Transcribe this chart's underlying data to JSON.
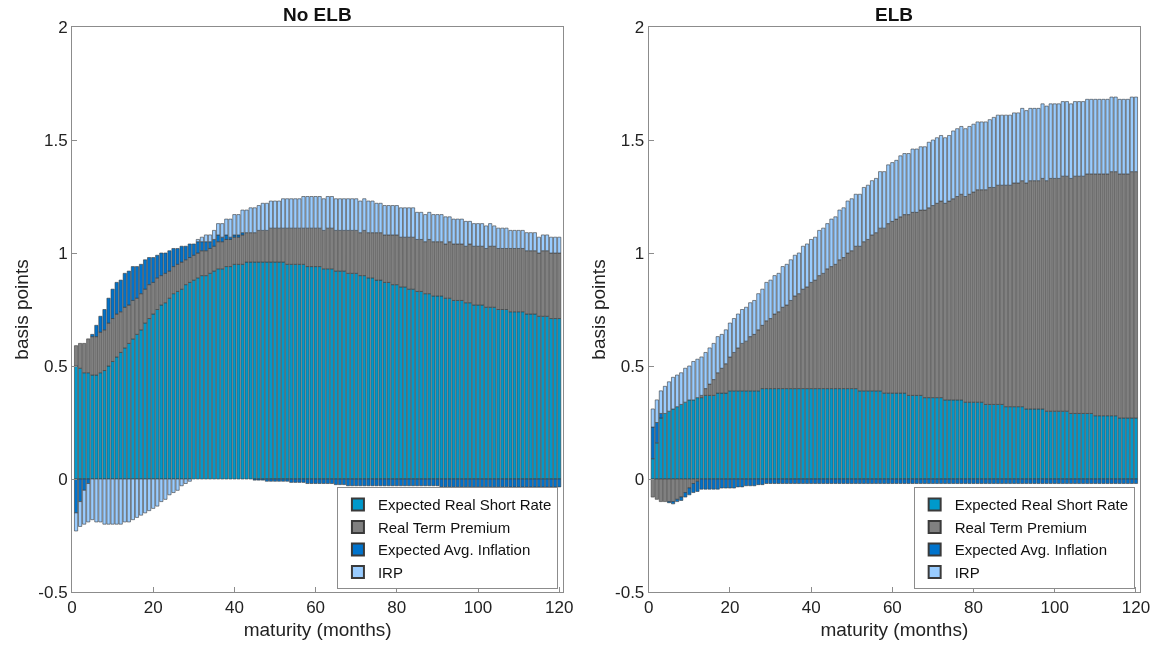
{
  "chart_data": [
    {
      "type": "bar",
      "stacked": true,
      "title": "No ELB",
      "xlabel": "maturity (months)",
      "ylabel": "basis points",
      "xlim": [
        0,
        121
      ],
      "ylim": [
        -0.5,
        2
      ],
      "xticks": [
        0,
        20,
        40,
        60,
        80,
        100,
        120
      ],
      "yticks": [
        -0.5,
        0,
        0.5,
        1,
        1.5,
        2
      ],
      "legend": "bottom right",
      "x": [
        1,
        2,
        3,
        4,
        5,
        6,
        7,
        8,
        9,
        10,
        11,
        12,
        13,
        14,
        15,
        16,
        17,
        18,
        19,
        20,
        21,
        22,
        23,
        24,
        25,
        26,
        27,
        28,
        29,
        30,
        31,
        32,
        33,
        34,
        35,
        36,
        37,
        38,
        39,
        40,
        41,
        42,
        43,
        44,
        45,
        46,
        47,
        48,
        49,
        50,
        51,
        52,
        53,
        54,
        55,
        56,
        57,
        58,
        59,
        60,
        61,
        62,
        63,
        64,
        65,
        66,
        67,
        68,
        69,
        70,
        71,
        72,
        73,
        74,
        75,
        76,
        77,
        78,
        79,
        80,
        81,
        82,
        83,
        84,
        85,
        86,
        87,
        88,
        89,
        90,
        91,
        92,
        93,
        94,
        95,
        96,
        97,
        98,
        99,
        100,
        101,
        102,
        103,
        104,
        105,
        106,
        107,
        108,
        109,
        110,
        111,
        112,
        113,
        114,
        115,
        116,
        117,
        118,
        119,
        120
      ],
      "series": [
        {
          "name": "Expected Real Short Rate",
          "color": "#0099cc",
          "values": [
            0.5,
            0.49,
            0.47,
            0.47,
            0.46,
            0.46,
            0.47,
            0.48,
            0.5,
            0.52,
            0.54,
            0.56,
            0.58,
            0.6,
            0.62,
            0.64,
            0.66,
            0.69,
            0.71,
            0.73,
            0.75,
            0.77,
            0.78,
            0.8,
            0.82,
            0.83,
            0.84,
            0.86,
            0.87,
            0.88,
            0.89,
            0.9,
            0.9,
            0.91,
            0.92,
            0.93,
            0.93,
            0.94,
            0.94,
            0.95,
            0.95,
            0.95,
            0.96,
            0.96,
            0.96,
            0.96,
            0.96,
            0.96,
            0.96,
            0.96,
            0.96,
            0.96,
            0.95,
            0.95,
            0.95,
            0.95,
            0.95,
            0.94,
            0.94,
            0.94,
            0.94,
            0.93,
            0.93,
            0.93,
            0.92,
            0.92,
            0.92,
            0.91,
            0.91,
            0.91,
            0.9,
            0.9,
            0.89,
            0.89,
            0.88,
            0.88,
            0.87,
            0.87,
            0.86,
            0.86,
            0.85,
            0.85,
            0.84,
            0.84,
            0.83,
            0.83,
            0.82,
            0.82,
            0.81,
            0.81,
            0.81,
            0.8,
            0.8,
            0.79,
            0.79,
            0.79,
            0.78,
            0.78,
            0.77,
            0.77,
            0.77,
            0.76,
            0.76,
            0.76,
            0.75,
            0.75,
            0.75,
            0.74,
            0.74,
            0.74,
            0.74,
            0.73,
            0.73,
            0.73,
            0.72,
            0.72,
            0.72,
            0.71,
            0.71,
            0.71
          ]
        },
        {
          "name": "Real Term Premium",
          "color": "#808080",
          "values": [
            0.09,
            0.11,
            0.13,
            0.15,
            0.17,
            0.17,
            0.18,
            0.18,
            0.19,
            0.19,
            0.19,
            0.18,
            0.18,
            0.17,
            0.17,
            0.16,
            0.16,
            0.15,
            0.15,
            0.14,
            0.14,
            0.13,
            0.13,
            0.12,
            0.12,
            0.12,
            0.12,
            0.11,
            0.11,
            0.11,
            0.11,
            0.11,
            0.11,
            0.11,
            0.11,
            0.12,
            0.12,
            0.12,
            0.12,
            0.12,
            0.12,
            0.13,
            0.13,
            0.13,
            0.13,
            0.14,
            0.14,
            0.14,
            0.15,
            0.15,
            0.15,
            0.15,
            0.16,
            0.16,
            0.16,
            0.16,
            0.16,
            0.17,
            0.17,
            0.17,
            0.17,
            0.17,
            0.18,
            0.18,
            0.18,
            0.18,
            0.18,
            0.19,
            0.19,
            0.19,
            0.19,
            0.2,
            0.2,
            0.2,
            0.21,
            0.21,
            0.21,
            0.21,
            0.22,
            0.22,
            0.22,
            0.22,
            0.23,
            0.23,
            0.23,
            0.23,
            0.23,
            0.24,
            0.24,
            0.24,
            0.24,
            0.24,
            0.25,
            0.25,
            0.25,
            0.25,
            0.25,
            0.26,
            0.26,
            0.26,
            0.26,
            0.26,
            0.27,
            0.27,
            0.27,
            0.27,
            0.27,
            0.28,
            0.28,
            0.28,
            0.28,
            0.28,
            0.28,
            0.28,
            0.28,
            0.29,
            0.29,
            0.29,
            0.29,
            0.29
          ]
        },
        {
          "name": "Expected Avg. Inflation",
          "color": "#0073cc",
          "values": [
            -0.15,
            -0.1,
            -0.05,
            -0.02,
            0.01,
            0.05,
            0.07,
            0.09,
            0.11,
            0.13,
            0.14,
            0.14,
            0.15,
            0.15,
            0.15,
            0.14,
            0.13,
            0.13,
            0.12,
            0.11,
            0.1,
            0.1,
            0.09,
            0.09,
            0.08,
            0.07,
            0.07,
            0.06,
            0.06,
            0.05,
            0.05,
            0.04,
            0.04,
            0.03,
            0.03,
            0.03,
            0.02,
            0.02,
            0.01,
            0.01,
            0.01,
            0.01,
            null,
            0,
            -0.005,
            -0.005,
            -0.005,
            -0.01,
            -0.01,
            -0.01,
            -0.01,
            -0.01,
            -0.01,
            -0.015,
            -0.015,
            -0.015,
            -0.015,
            -0.02,
            -0.02,
            -0.02,
            -0.02,
            -0.02,
            -0.02,
            -0.02,
            -0.025,
            -0.025,
            -0.025,
            -0.03,
            -0.03,
            -0.03,
            -0.03,
            -0.03,
            -0.03,
            -0.03,
            -0.03,
            -0.03,
            -0.03,
            -0.03,
            -0.03,
            -0.03,
            -0.03,
            -0.03,
            -0.03,
            -0.03,
            -0.03,
            -0.03,
            -0.03,
            -0.03,
            -0.03,
            -0.03,
            -0.035,
            -0.035,
            -0.035,
            -0.035,
            -0.035,
            -0.035,
            -0.035,
            -0.035,
            -0.035,
            -0.035,
            -0.035,
            -0.035,
            -0.035,
            -0.035,
            -0.035,
            -0.035,
            -0.035,
            -0.035,
            -0.035,
            -0.035,
            -0.035,
            -0.035,
            -0.035,
            -0.035,
            -0.035,
            -0.035,
            -0.035,
            -0.035,
            -0.035,
            -0.035
          ]
        },
        {
          "name": "IRP",
          "color": "#99ccff",
          "values": [
            -0.08,
            -0.11,
            -0.15,
            -0.17,
            -0.18,
            -0.19,
            -0.19,
            -0.2,
            -0.2,
            -0.2,
            -0.2,
            -0.2,
            -0.19,
            -0.19,
            -0.18,
            -0.17,
            -0.16,
            -0.15,
            -0.14,
            -0.13,
            -0.12,
            -0.1,
            -0.09,
            -0.07,
            -0.06,
            -0.05,
            -0.03,
            -0.02,
            -0.01,
            0,
            0.01,
            0.02,
            0.03,
            0.03,
            0.04,
            0.05,
            0.06,
            0.07,
            0.08,
            0.09,
            0.09,
            0.1,
            0.1,
            0.11,
            0.11,
            0.11,
            0.12,
            0.12,
            0.12,
            0.12,
            0.12,
            0.13,
            0.13,
            0.13,
            0.13,
            0.13,
            0.14,
            0.14,
            0.14,
            0.14,
            0.14,
            0.14,
            0.14,
            0.14,
            0.14,
            0.14,
            0.14,
            0.14,
            0.14,
            0.14,
            0.14,
            0.14,
            0.14,
            0.14,
            0.13,
            0.13,
            0.13,
            0.13,
            0.13,
            0.13,
            0.13,
            0.13,
            0.13,
            0.13,
            0.12,
            0.12,
            0.12,
            0.12,
            0.12,
            0.12,
            0.12,
            0.12,
            0.11,
            0.11,
            0.11,
            0.11,
            0.11,
            0.1,
            0.1,
            0.1,
            0.1,
            0.1,
            0.1,
            0.09,
            0.09,
            0.09,
            0.09,
            0.08,
            0.08,
            0.08,
            0.08,
            0.08,
            0.08,
            0.08,
            0.07,
            0.07,
            0.07,
            0.07,
            0.07,
            0.07
          ]
        }
      ]
    },
    {
      "type": "bar",
      "stacked": true,
      "title": "ELB",
      "xlabel": "maturity (months)",
      "ylabel": "basis points",
      "xlim": [
        0,
        121
      ],
      "ylim": [
        -0.5,
        2
      ],
      "xticks": [
        0,
        20,
        40,
        60,
        80,
        100,
        120
      ],
      "yticks": [
        -0.5,
        0,
        0.5,
        1,
        1.5,
        2
      ],
      "legend": "bottom right",
      "x": [
        1,
        2,
        3,
        4,
        5,
        6,
        7,
        8,
        9,
        10,
        11,
        12,
        13,
        14,
        15,
        16,
        17,
        18,
        19,
        20,
        21,
        22,
        23,
        24,
        25,
        26,
        27,
        28,
        29,
        30,
        31,
        32,
        33,
        34,
        35,
        36,
        37,
        38,
        39,
        40,
        41,
        42,
        43,
        44,
        45,
        46,
        47,
        48,
        49,
        50,
        51,
        52,
        53,
        54,
        55,
        56,
        57,
        58,
        59,
        60,
        61,
        62,
        63,
        64,
        65,
        66,
        67,
        68,
        69,
        70,
        71,
        72,
        73,
        74,
        75,
        76,
        77,
        78,
        79,
        80,
        81,
        82,
        83,
        84,
        85,
        86,
        87,
        88,
        89,
        90,
        91,
        92,
        93,
        94,
        95,
        96,
        97,
        98,
        99,
        100,
        101,
        102,
        103,
        104,
        105,
        106,
        107,
        108,
        109,
        110,
        111,
        112,
        113,
        114,
        115,
        116,
        117,
        118,
        119,
        120
      ],
      "series": [
        {
          "name": "Expected Real Short Rate",
          "color": "#0099cc",
          "values": [
            0.09,
            0.16,
            0.27,
            0.29,
            0.3,
            0.31,
            0.32,
            0.33,
            0.34,
            0.35,
            0.35,
            0.36,
            0.36,
            0.37,
            0.37,
            0.37,
            0.38,
            0.38,
            0.38,
            0.39,
            0.39,
            0.39,
            0.39,
            0.39,
            0.39,
            0.39,
            0.39,
            0.4,
            0.4,
            0.4,
            0.4,
            0.4,
            0.4,
            0.4,
            0.4,
            0.4,
            0.4,
            0.4,
            0.4,
            0.4,
            0.4,
            0.4,
            0.4,
            0.4,
            0.4,
            0.4,
            0.4,
            0.4,
            0.4,
            0.4,
            0.4,
            0.39,
            0.39,
            0.39,
            0.39,
            0.39,
            0.39,
            0.38,
            0.38,
            0.38,
            0.38,
            0.38,
            0.38,
            0.37,
            0.37,
            0.37,
            0.37,
            0.36,
            0.36,
            0.36,
            0.36,
            0.36,
            0.35,
            0.35,
            0.35,
            0.35,
            0.35,
            0.34,
            0.34,
            0.34,
            0.34,
            0.34,
            0.33,
            0.33,
            0.33,
            0.33,
            0.33,
            0.32,
            0.32,
            0.32,
            0.32,
            0.32,
            0.31,
            0.31,
            0.31,
            0.31,
            0.31,
            0.3,
            0.3,
            0.3,
            0.3,
            0.3,
            0.3,
            0.29,
            0.29,
            0.29,
            0.29,
            0.29,
            0.29,
            0.28,
            0.28,
            0.28,
            0.28,
            0.28,
            0.28,
            0.27,
            0.27,
            0.27,
            0.27,
            0.27
          ]
        },
        {
          "name": "Real Term Premium",
          "color": "#808080",
          "values": [
            -0.08,
            -0.09,
            -0.1,
            -0.1,
            -0.1,
            -0.1,
            -0.09,
            -0.08,
            -0.06,
            -0.04,
            -0.02,
            -0.01,
            0.01,
            0.03,
            0.05,
            0.07,
            0.09,
            0.11,
            0.13,
            0.15,
            0.17,
            0.19,
            0.21,
            0.22,
            0.24,
            0.25,
            0.27,
            0.28,
            0.3,
            0.31,
            0.33,
            0.34,
            0.36,
            0.37,
            0.39,
            0.41,
            0.42,
            0.44,
            0.45,
            0.47,
            0.48,
            0.5,
            0.51,
            0.53,
            0.54,
            0.55,
            0.57,
            0.58,
            0.6,
            0.61,
            0.63,
            0.64,
            0.66,
            0.67,
            0.69,
            0.7,
            0.72,
            0.73,
            0.75,
            0.76,
            0.77,
            0.78,
            0.79,
            0.8,
            0.81,
            0.81,
            0.82,
            0.83,
            0.84,
            0.85,
            0.86,
            0.87,
            0.87,
            0.88,
            0.89,
            0.9,
            0.91,
            0.91,
            0.92,
            0.93,
            0.94,
            0.94,
            0.95,
            0.96,
            0.96,
            0.97,
            0.97,
            0.98,
            0.98,
            0.99,
            0.99,
            1.0,
            1.0,
            1.01,
            1.01,
            1.01,
            1.02,
            1.02,
            1.03,
            1.03,
            1.03,
            1.04,
            1.04,
            1.04,
            1.05,
            1.05,
            1.05,
            1.06,
            1.06,
            1.07,
            1.07,
            1.07,
            1.07,
            1.08,
            1.08,
            1.08,
            1.08,
            1.08,
            1.09,
            1.09
          ]
        },
        {
          "name": "Expected Avg. Inflation",
          "color": "#0073cc",
          "values": [
            0.14,
            0.09,
            0.02,
            0,
            -0.005,
            -0.01,
            -0.01,
            -0.015,
            -0.02,
            -0.03,
            -0.04,
            -0.045,
            -0.045,
            -0.045,
            -0.045,
            -0.045,
            -0.045,
            -0.04,
            -0.04,
            -0.04,
            -0.04,
            -0.035,
            -0.035,
            -0.03,
            -0.03,
            -0.03,
            -0.025,
            -0.025,
            -0.02,
            -0.02,
            -0.02,
            -0.02,
            -0.02,
            -0.02,
            -0.02,
            -0.02,
            -0.02,
            -0.02,
            -0.02,
            -0.02,
            -0.02,
            -0.02,
            -0.02,
            -0.02,
            -0.02,
            -0.02,
            -0.02,
            -0.02,
            -0.02,
            -0.02,
            -0.02,
            -0.02,
            -0.02,
            -0.02,
            -0.02,
            -0.02,
            -0.02,
            -0.02,
            -0.02,
            -0.02,
            -0.02,
            -0.02,
            -0.02,
            -0.02,
            -0.02,
            -0.02,
            -0.02,
            -0.02,
            -0.02,
            -0.02,
            -0.02,
            -0.02,
            -0.02,
            -0.02,
            -0.02,
            -0.02,
            -0.02,
            -0.02,
            -0.02,
            -0.02,
            -0.02,
            -0.02,
            -0.02,
            -0.02,
            -0.02,
            -0.02,
            -0.02,
            -0.02,
            -0.02,
            -0.02,
            -0.02,
            -0.02,
            -0.02,
            -0.02,
            -0.02,
            -0.02,
            -0.02,
            -0.02,
            -0.02,
            -0.02,
            -0.02,
            -0.02,
            -0.02,
            -0.02,
            -0.02,
            -0.02,
            -0.02,
            -0.02,
            -0.02,
            -0.02,
            -0.02,
            -0.02,
            -0.02,
            -0.02,
            -0.02,
            -0.02,
            -0.02,
            -0.02,
            -0.02,
            -0.02
          ]
        },
        {
          "name": "IRP",
          "color": "#99ccff",
          "values": [
            0.08,
            0.1,
            0.1,
            0.12,
            0.13,
            0.14,
            0.14,
            0.14,
            0.15,
            0.15,
            0.17,
            0.17,
            0.17,
            0.16,
            0.16,
            0.16,
            0.16,
            0.15,
            0.15,
            0.15,
            0.15,
            0.15,
            0.15,
            0.15,
            0.15,
            0.15,
            0.16,
            0.16,
            0.17,
            0.17,
            0.17,
            0.17,
            0.18,
            0.18,
            0.18,
            0.18,
            0.18,
            0.19,
            0.19,
            0.19,
            0.19,
            0.2,
            0.2,
            0.2,
            0.21,
            0.21,
            0.22,
            0.22,
            0.23,
            0.23,
            0.23,
            0.23,
            0.24,
            0.24,
            0.24,
            0.24,
            0.25,
            0.25,
            0.26,
            0.26,
            0.26,
            0.27,
            0.27,
            0.27,
            0.28,
            0.28,
            0.28,
            0.28,
            0.29,
            0.29,
            0.29,
            0.29,
            0.29,
            0.29,
            0.3,
            0.3,
            0.3,
            0.3,
            0.3,
            0.3,
            0.3,
            0.3,
            0.3,
            0.3,
            0.31,
            0.31,
            0.31,
            0.31,
            0.31,
            0.31,
            0.31,
            0.32,
            0.32,
            0.32,
            0.32,
            0.32,
            0.33,
            0.33,
            0.33,
            0.33,
            0.33,
            0.33,
            0.33,
            0.33,
            0.33,
            0.33,
            0.33,
            0.33,
            0.33,
            0.33,
            0.33,
            0.33,
            0.33,
            0.33,
            0.33,
            0.33,
            0.33,
            0.33,
            0.33,
            0.33
          ]
        }
      ]
    }
  ]
}
